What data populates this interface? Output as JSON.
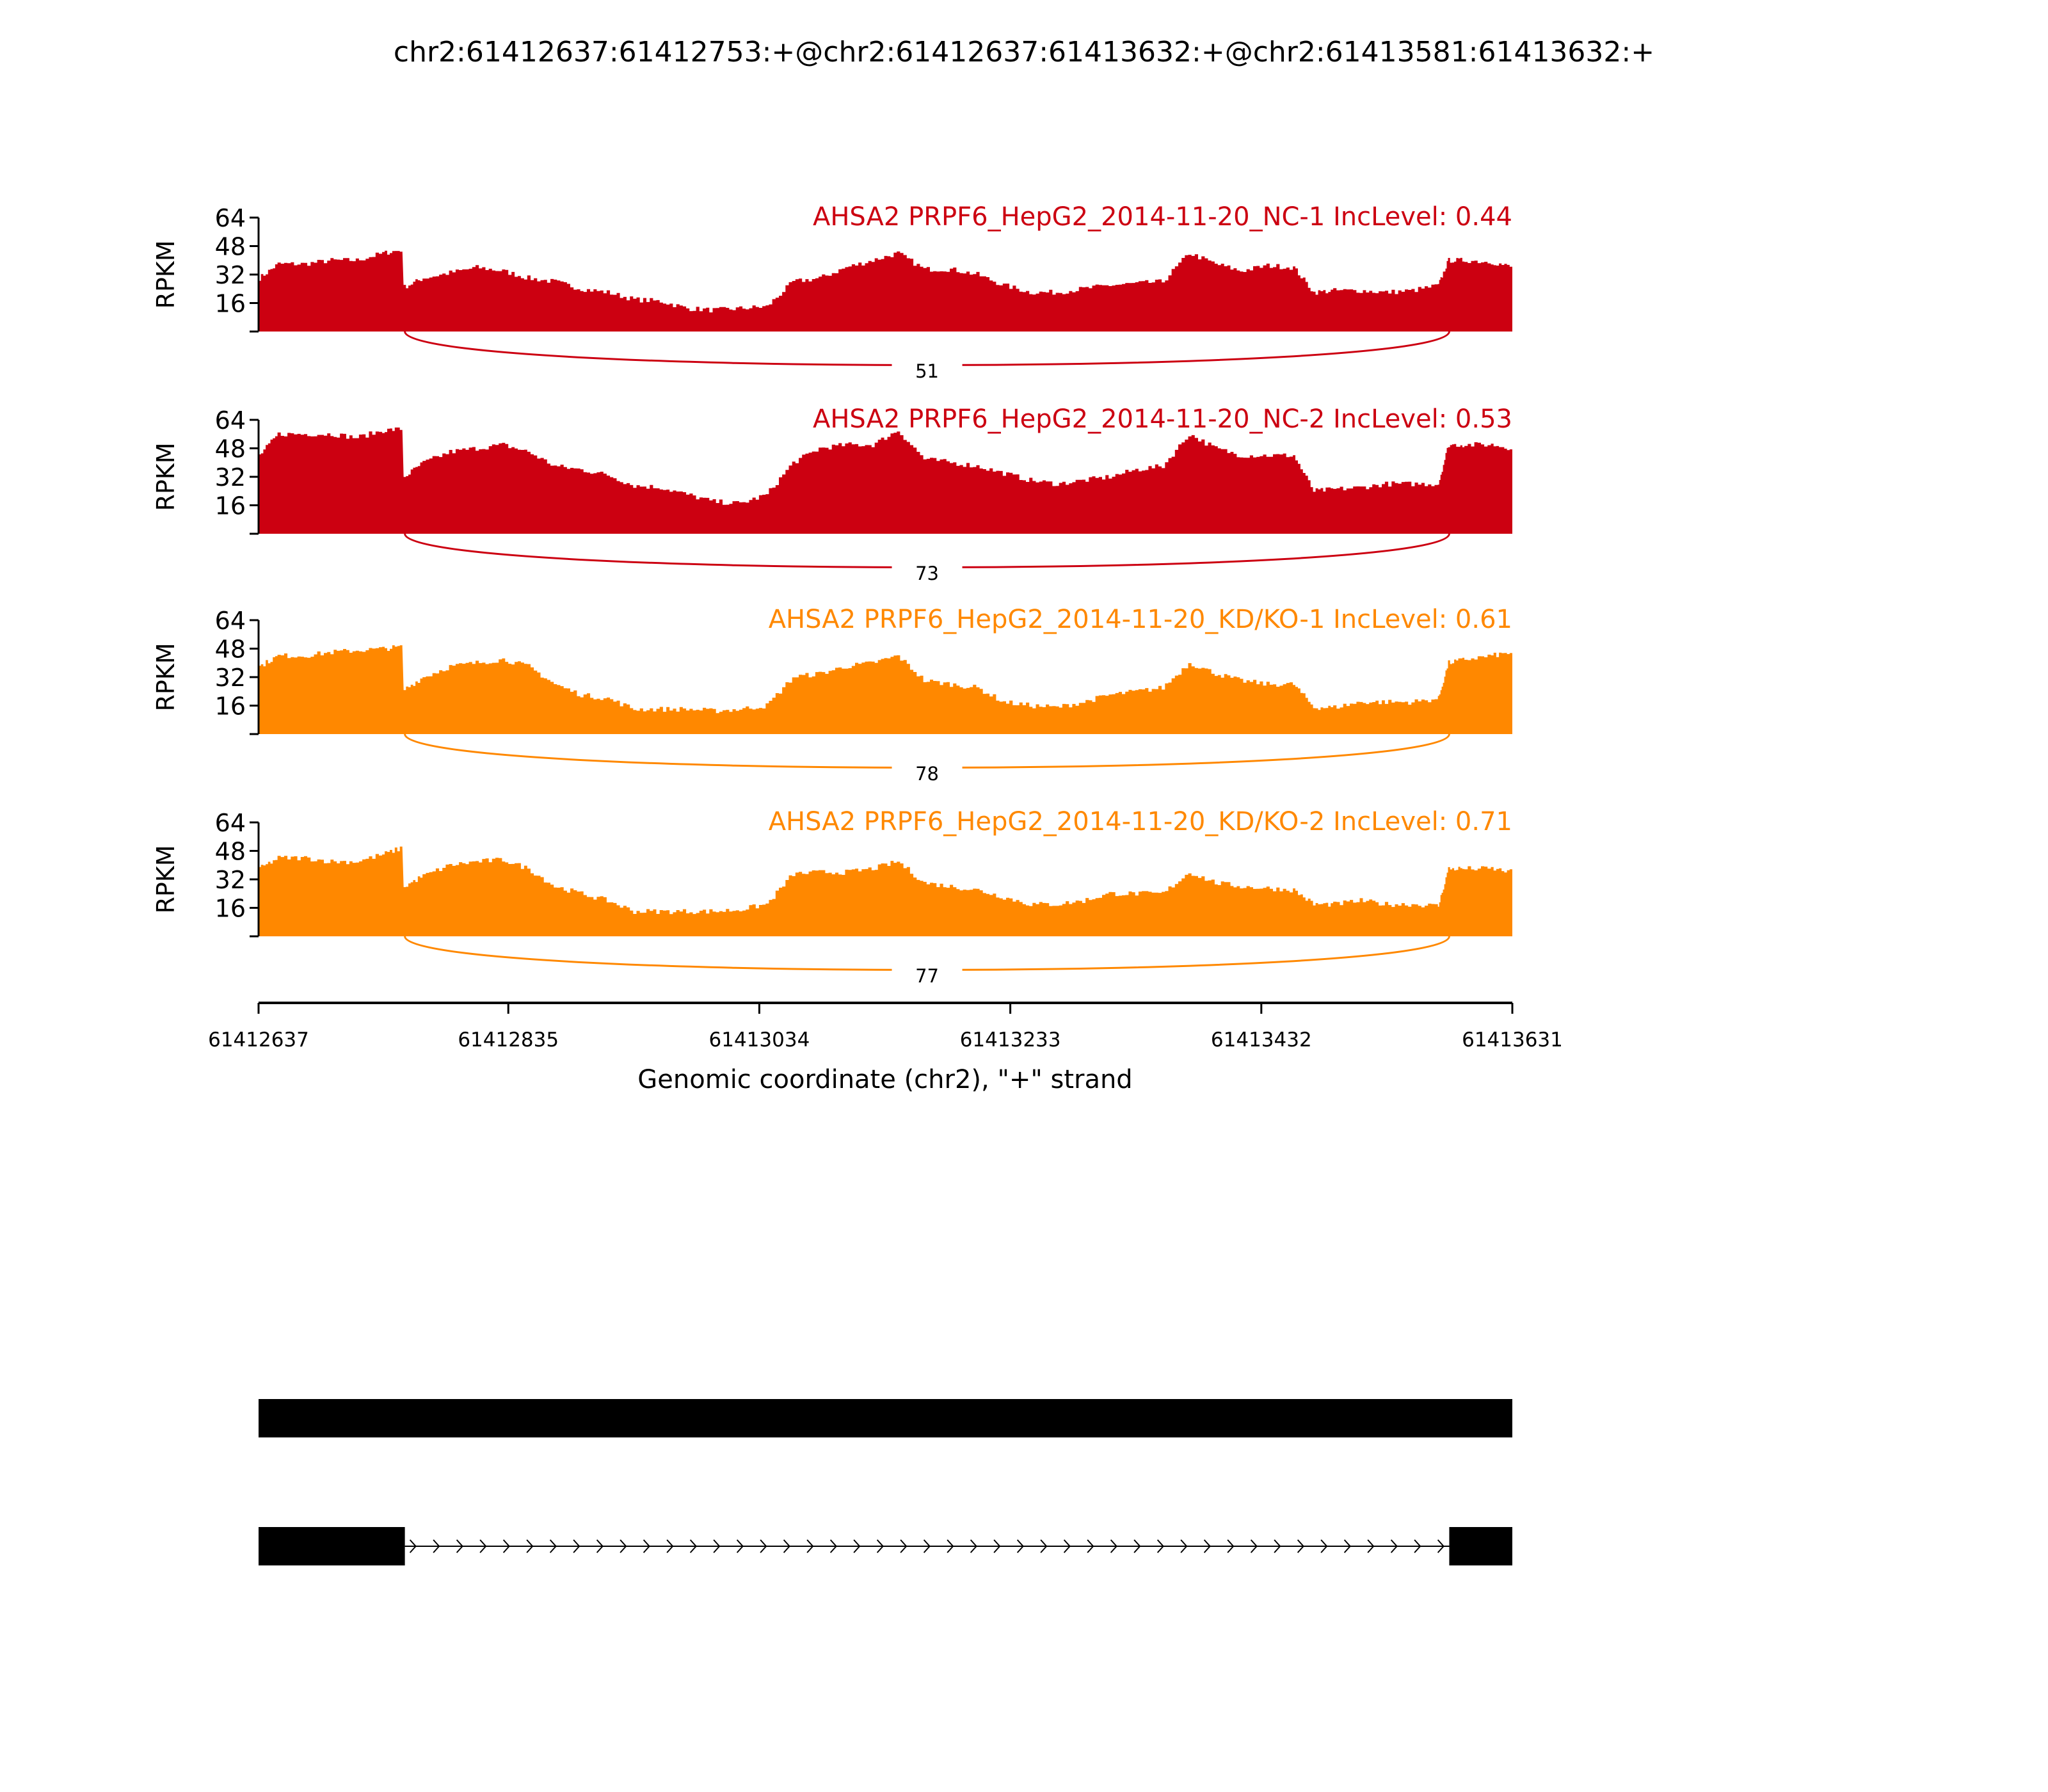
{
  "chart_data": {
    "type": "area",
    "title": "chr2:61412637:61412753:+@chr2:61412637:61413632:+@chr2:61413581:61413632:+",
    "xlabel": "Genomic coordinate (chr2), \"+\" strand",
    "ylabel": "RPKM",
    "xlim": [
      61412637,
      61413631
    ],
    "ylim": [
      0,
      64
    ],
    "yticks": [
      "16",
      "32",
      "48",
      "64"
    ],
    "xticks": [
      "61412637",
      "61412835",
      "61413034",
      "61413233",
      "61413432",
      "61413631"
    ],
    "x": [
      61412637,
      61412652,
      61412673,
      61412694,
      61412714,
      61412735,
      61412751,
      61412752,
      61412767,
      61412788,
      61412809,
      61412830,
      61412850,
      61412871,
      61412892,
      61412913,
      61412934,
      61412955,
      61412976,
      61412997,
      61413018,
      61413039,
      61413060,
      61413081,
      61413102,
      61413123,
      61413143,
      61413164,
      61413185,
      61413206,
      61413227,
      61413248,
      61413269,
      61413290,
      61413311,
      61413332,
      61413353,
      61413374,
      61413395,
      61413415,
      61413436,
      61413457,
      61413473,
      61413489,
      61413510,
      61413530,
      61413551,
      61413572,
      61413580,
      61413593,
      61413614,
      61413631
    ],
    "series": [
      {
        "name": "AHSA2 PRPF6_HepG2_2014-11-20_NC-1 IncLevel: 0.44",
        "color": "#CC0011",
        "junction": {
          "start": 61412753,
          "end": 61413581,
          "count": "51"
        },
        "values": [
          30,
          38,
          38,
          40,
          40,
          44,
          46,
          25,
          30,
          33,
          36,
          34,
          30,
          28,
          24,
          22,
          18,
          17,
          13,
          12,
          13,
          14,
          28,
          30,
          36,
          40,
          44,
          35,
          35,
          32,
          26,
          22,
          22,
          24,
          26,
          27,
          28,
          44,
          38,
          34,
          37,
          36,
          22,
          23,
          23,
          22,
          23,
          26,
          40,
          40,
          39,
          36
        ]
      },
      {
        "name": "AHSA2 PRPF6_HepG2_2014-11-20_NC-2 IncLevel: 0.53",
        "color": "#CC0011",
        "junction": {
          "start": 61412753,
          "end": 61413581,
          "count": "73"
        },
        "values": [
          44,
          56,
          56,
          56,
          54,
          58,
          59,
          32,
          40,
          46,
          48,
          50,
          46,
          38,
          36,
          33,
          27,
          26,
          22,
          18,
          17,
          22,
          40,
          48,
          50,
          50,
          58,
          42,
          40,
          38,
          34,
          30,
          28,
          30,
          32,
          36,
          38,
          56,
          48,
          44,
          44,
          44,
          24,
          25,
          26,
          28,
          28,
          28,
          50,
          50,
          50,
          48
        ]
      },
      {
        "name": "AHSA2 PRPF6_HepG2_2014-11-20_KD/KO-1 IncLevel: 0.61",
        "color": "#FF8800",
        "junction": {
          "start": 61412753,
          "end": 61413581,
          "count": "78"
        },
        "values": [
          38,
          44,
          44,
          46,
          47,
          48,
          49,
          25,
          32,
          38,
          40,
          42,
          38,
          28,
          22,
          20,
          14,
          14,
          14,
          13,
          14,
          16,
          32,
          34,
          38,
          40,
          44,
          30,
          28,
          26,
          18,
          16,
          15,
          18,
          22,
          24,
          26,
          40,
          34,
          30,
          28,
          28,
          15,
          15,
          18,
          18,
          18,
          20,
          40,
          42,
          44,
          46
        ]
      },
      {
        "name": "AHSA2 PRPF6_HepG2_2014-11-20_KD/KO-2 IncLevel: 0.71",
        "color": "#FF8800",
        "junction": {
          "start": 61412753,
          "end": 61413581,
          "count": "77"
        },
        "values": [
          38,
          44,
          44,
          42,
          42,
          46,
          50,
          28,
          34,
          40,
          42,
          43,
          38,
          28,
          24,
          20,
          14,
          14,
          14,
          14,
          15,
          18,
          35,
          36,
          36,
          38,
          42,
          30,
          28,
          26,
          22,
          18,
          18,
          20,
          24,
          24,
          24,
          36,
          30,
          28,
          27,
          26,
          18,
          18,
          20,
          18,
          18,
          17,
          38,
          38,
          38,
          36
        ]
      }
    ],
    "isoforms": [
      {
        "exons": [
          [
            61412637,
            61413632
          ]
        ]
      },
      {
        "exons": [
          [
            61412637,
            61412753
          ],
          [
            61413581,
            61413632
          ]
        ],
        "strand": "+"
      }
    ]
  }
}
